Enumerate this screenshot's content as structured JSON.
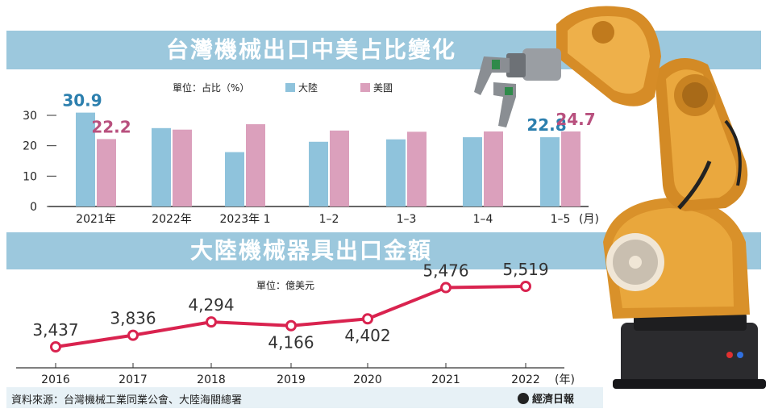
{
  "chart_data": [
    {
      "type": "bar",
      "title": "台灣機械出口中美占比變化",
      "unit_label": "單位：占比（%）",
      "categories": [
        "2021年",
        "2022年",
        "2023年 1",
        "1–2",
        "1–3",
        "1–4",
        "1–5"
      ],
      "x_unit": "(月)",
      "series": [
        {
          "name": "大陸",
          "color": "#8fc3dc",
          "values": [
            30.9,
            25.8,
            17.9,
            21.3,
            22.1,
            22.8,
            22.8
          ]
        },
        {
          "name": "美國",
          "color": "#dba0bc",
          "values": [
            22.2,
            25.3,
            27.1,
            25.0,
            24.6,
            24.7,
            24.7
          ]
        }
      ],
      "data_labels": [
        {
          "text": "30.9",
          "series": 0,
          "index": 0
        },
        {
          "text": "22.2",
          "series": 1,
          "index": 0
        },
        {
          "text": "22.8",
          "series": 0,
          "index": 6
        },
        {
          "text": "24.7",
          "series": 1,
          "index": 6
        }
      ],
      "yticks": [
        "0",
        "10",
        "20",
        "30"
      ],
      "ylim": [
        0,
        30
      ],
      "grid": false,
      "legend_placement": "top-center"
    },
    {
      "type": "line",
      "title": "大陸機械器具出口金額",
      "unit_label": "單位：億美元",
      "categories": [
        "2016",
        "2017",
        "2018",
        "2019",
        "2020",
        "2021",
        "2022"
      ],
      "x_unit": "(年)",
      "series": [
        {
          "color": "#d9234f",
          "values": [
            3437,
            3836,
            4294,
            4166,
            4402,
            5476,
            5519
          ],
          "labels": [
            "3,437",
            "3,836",
            "4,294",
            "4,166",
            "4,402",
            "5,476",
            "5,519"
          ]
        }
      ],
      "grid": false
    }
  ],
  "footer": {
    "source": "資料來源：台灣機械工業同業公會、大陸海關總署",
    "brand": "經濟日報"
  }
}
